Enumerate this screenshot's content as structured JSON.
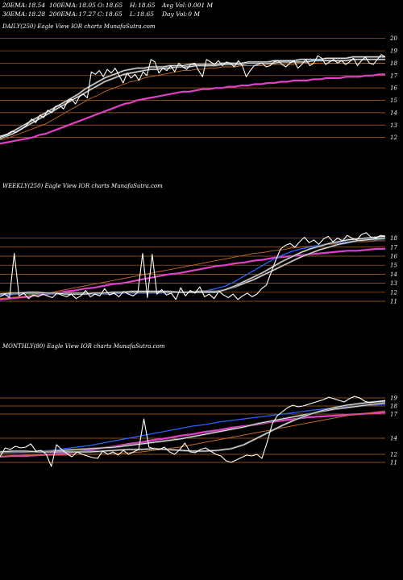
{
  "header": {
    "row1": [
      {
        "label": "20EMA:",
        "value": "18.54"
      },
      {
        "label": "100EMA:",
        "value": "18.05"
      },
      {
        "label": "O:",
        "value": "18.65"
      },
      {
        "label": "H:",
        "value": "18.65"
      },
      {
        "label": "Avg Vol:",
        "value": "0.001 M"
      }
    ],
    "row2": [
      {
        "label": "30EMA:",
        "value": "18.28"
      },
      {
        "label": "200EMA:",
        "value": "17.27"
      },
      {
        "label": "C:",
        "value": "18.65"
      },
      {
        "label": "L:",
        "value": "18.65"
      },
      {
        "label": "Day Vol:",
        "value": "0  M"
      }
    ]
  },
  "colors": {
    "background": "#000000",
    "price": "#ffffff",
    "grid": "#b5651d",
    "ema_fast": "#ffffff",
    "ema_mid": "#2962ff",
    "ema_slow": "#c46a24",
    "ema_long": "#e040c8"
  },
  "chart_data": [
    {
      "type": "line",
      "title": "DAILY(250) Eagle  View  IOR charts MunafaSutra.com",
      "ylim": [
        11,
        20.5
      ],
      "yticks": [
        12,
        13,
        14,
        15,
        16,
        17,
        18,
        19,
        20
      ],
      "series": [
        {
          "role": "price",
          "y": [
            12.1,
            12.2,
            12.3,
            12.5,
            12.4,
            12.6,
            12.8,
            13.1,
            13.5,
            13.2,
            13.8,
            13.6,
            14.2,
            14.0,
            14.5,
            14.6,
            14.3,
            14.9,
            15.1,
            14.7,
            15.3,
            15.5,
            15.2,
            17.3,
            17.1,
            17.4,
            16.9,
            17.5,
            17.2,
            17.6,
            17.0,
            16.4,
            17.2,
            16.8,
            17.1,
            16.6,
            17.3,
            17.0,
            18.3,
            18.1,
            17.2,
            17.6,
            17.4,
            17.8,
            17.3,
            18.0,
            17.7,
            17.5,
            17.9,
            18.0,
            17.4,
            16.9,
            18.3,
            18.1,
            17.9,
            18.2,
            17.8,
            18.1,
            18.0,
            17.7,
            18.2,
            17.8,
            16.9,
            17.4,
            17.8,
            17.9,
            18.0,
            17.7,
            17.8,
            18.1,
            18.2,
            17.9,
            17.7,
            18.0,
            18.2,
            17.6,
            17.9,
            18.3,
            17.8,
            18.0,
            18.6,
            18.4,
            17.9,
            18.1,
            18.3,
            18.0,
            18.2,
            17.9,
            18.1,
            18.4,
            17.8,
            18.2,
            18.5,
            18.0,
            17.9,
            18.3,
            18.7,
            18.5
          ]
        },
        {
          "role": "ema-20",
          "y": [
            12.0,
            12.2,
            12.5,
            12.8,
            13.1,
            13.4,
            13.7,
            14.0,
            14.3,
            14.6,
            14.9,
            15.2,
            15.5,
            15.9,
            16.2,
            16.5,
            16.8,
            17.0,
            17.2,
            17.4,
            17.5,
            17.6,
            17.6,
            17.7,
            17.7,
            17.7,
            17.8,
            17.8,
            17.8,
            17.9,
            17.9,
            17.9,
            17.9,
            17.9,
            18.0,
            18.0,
            18.0,
            18.0,
            18.1,
            18.1,
            18.1,
            18.1,
            18.2,
            18.2,
            18.2,
            18.2,
            18.3,
            18.3,
            18.3,
            18.3,
            18.4,
            18.4,
            18.4,
            18.4,
            18.5,
            18.5,
            18.5,
            18.5,
            18.5,
            18.5
          ]
        },
        {
          "role": "ema-30",
          "y": [
            11.9,
            12.1,
            12.3,
            12.6,
            12.9,
            13.2,
            13.5,
            13.8,
            14.1,
            14.4,
            14.7,
            15.0,
            15.3,
            15.6,
            15.9,
            16.2,
            16.5,
            16.7,
            16.9,
            17.1,
            17.2,
            17.3,
            17.4,
            17.5,
            17.5,
            17.6,
            17.6,
            17.7,
            17.7,
            17.7,
            17.8,
            17.8,
            17.8,
            17.8,
            17.9,
            17.9,
            17.9,
            17.9,
            18.0,
            18.0,
            18.0,
            18.0,
            18.0,
            18.1,
            18.1,
            18.1,
            18.1,
            18.1,
            18.2,
            18.2,
            18.2,
            18.2,
            18.2,
            18.2,
            18.3,
            18.3,
            18.3,
            18.3,
            18.3,
            18.3
          ]
        },
        {
          "role": "ema-100",
          "y": [
            11.8,
            11.9,
            12.1,
            12.3,
            12.5,
            12.7,
            12.9,
            13.1,
            13.4,
            13.7,
            14.0,
            14.3,
            14.6,
            14.9,
            15.2,
            15.4,
            15.7,
            15.9,
            16.1,
            16.3,
            16.5,
            16.6,
            16.8,
            16.9,
            17.0,
            17.1,
            17.2,
            17.3,
            17.4,
            17.4,
            17.5,
            17.5,
            17.6,
            17.6,
            17.7,
            17.7,
            17.7,
            17.8,
            17.8,
            17.8,
            17.8,
            17.9,
            17.9,
            17.9,
            17.9,
            17.9,
            18.0,
            18.0,
            18.0,
            18.0,
            18.0,
            18.0,
            18.0,
            18.0,
            18.0,
            18.0,
            18.0,
            18.0,
            18.0,
            18.0
          ]
        },
        {
          "role": "ema-200",
          "y": [
            11.5,
            11.6,
            11.7,
            11.8,
            11.9,
            12.0,
            12.2,
            12.3,
            12.5,
            12.7,
            12.9,
            13.1,
            13.3,
            13.5,
            13.7,
            13.9,
            14.1,
            14.3,
            14.5,
            14.7,
            14.8,
            15.0,
            15.1,
            15.2,
            15.3,
            15.4,
            15.5,
            15.6,
            15.7,
            15.7,
            15.8,
            15.9,
            15.9,
            16.0,
            16.0,
            16.1,
            16.1,
            16.2,
            16.2,
            16.3,
            16.3,
            16.4,
            16.4,
            16.5,
            16.5,
            16.6,
            16.6,
            16.6,
            16.7,
            16.7,
            16.8,
            16.8,
            16.8,
            16.9,
            16.9,
            16.9,
            17.0,
            17.0,
            17.1,
            17.1
          ]
        }
      ]
    },
    {
      "type": "line",
      "title": "WEEKLY(250) Eagle  View  IOR charts MunafaSutra.com",
      "ylim": [
        10.2,
        19.3
      ],
      "yticks": [
        11,
        12,
        13,
        14,
        15,
        16,
        17,
        18
      ],
      "series": [
        {
          "role": "price",
          "y": [
            11.5,
            11.8,
            11.4,
            16.3,
            11.6,
            11.9,
            11.3,
            11.7,
            11.5,
            11.8,
            11.6,
            11.4,
            11.9,
            11.7,
            11.5,
            11.8,
            11.3,
            11.6,
            12.2,
            11.5,
            11.8,
            11.6,
            12.4,
            11.7,
            11.9,
            11.5,
            12.1,
            11.8,
            11.6,
            12.0,
            16.3,
            11.4,
            16.2,
            11.8,
            12.3,
            11.7,
            11.9,
            11.2,
            12.5,
            11.6,
            12.2,
            11.9,
            12.6,
            11.5,
            11.8,
            11.3,
            12.1,
            11.7,
            11.4,
            11.8,
            11.2,
            11.6,
            11.9,
            11.5,
            11.8,
            12.4,
            12.8,
            14.2,
            15.6,
            16.8,
            17.2,
            17.4,
            17.0,
            17.6,
            18.1,
            17.5,
            17.8,
            17.3,
            17.9,
            18.2,
            17.6,
            18.0,
            17.7,
            18.3,
            18.0,
            17.8,
            18.4,
            18.6,
            18.1,
            18.0,
            18.3,
            18.2
          ]
        },
        {
          "role": "ema-20",
          "y": [
            11.8,
            11.9,
            11.9,
            12.0,
            12.0,
            11.9,
            11.9,
            11.8,
            11.8,
            11.8,
            11.9,
            11.9,
            12.0,
            12.0,
            12.1,
            12.1,
            12.1,
            12.1,
            12.1,
            12.0,
            12.0,
            12.0,
            12.0,
            12.0,
            12.3,
            12.7,
            13.2,
            13.7,
            14.2,
            14.8,
            15.4,
            15.9,
            16.4,
            16.8,
            17.1,
            17.4,
            17.6,
            17.8,
            17.9,
            18.0,
            18.1,
            18.2
          ]
        },
        {
          "role": "ema-30",
          "y": [
            11.8,
            11.8,
            11.9,
            11.9,
            11.9,
            11.9,
            11.9,
            11.9,
            11.9,
            11.9,
            11.9,
            11.9,
            11.9,
            12.0,
            12.0,
            12.0,
            12.0,
            12.0,
            12.0,
            12.0,
            12.0,
            12.1,
            12.1,
            12.1,
            12.3,
            12.6,
            13.0,
            13.4,
            13.9,
            14.4,
            14.9,
            15.4,
            15.9,
            16.3,
            16.7,
            17.0,
            17.3,
            17.5,
            17.7,
            17.8,
            17.9,
            18.0
          ]
        },
        {
          "role": "ema-50",
          "y": [
            11.7,
            11.7,
            11.8,
            11.8,
            11.8,
            11.8,
            11.8,
            11.8,
            11.8,
            11.8,
            11.8,
            11.8,
            11.8,
            11.9,
            11.9,
            11.9,
            11.9,
            11.9,
            11.9,
            12.0,
            12.0,
            12.1,
            12.2,
            12.4,
            12.7,
            13.2,
            13.8,
            14.4,
            15.0,
            15.6,
            16.1,
            16.5,
            16.8,
            17.0,
            17.2,
            17.4,
            17.5,
            17.6,
            17.7,
            17.8,
            17.8,
            17.9
          ]
        },
        {
          "role": "ema-100",
          "y": [
            11.3,
            11.4,
            11.5,
            11.6,
            11.8,
            11.9,
            12.1,
            12.3,
            12.5,
            12.7,
            12.9,
            13.1,
            13.3,
            13.5,
            13.7,
            13.9,
            14.1,
            14.3,
            14.5,
            14.7,
            14.9,
            15.1,
            15.3,
            15.5,
            15.7,
            15.9,
            16.1,
            16.3,
            16.4,
            16.6,
            16.7,
            16.9,
            17.0,
            17.1,
            17.2,
            17.3,
            17.4,
            17.5,
            17.6,
            17.6,
            17.7,
            17.7
          ]
        },
        {
          "role": "ema-200",
          "y": [
            11.2,
            11.3,
            11.4,
            11.5,
            11.7,
            11.8,
            11.9,
            12.1,
            12.2,
            12.4,
            12.5,
            12.7,
            12.9,
            13.0,
            13.2,
            13.4,
            13.6,
            13.8,
            14.0,
            14.1,
            14.3,
            14.5,
            14.7,
            14.9,
            15.0,
            15.2,
            15.3,
            15.5,
            15.6,
            15.8,
            15.9,
            16.0,
            16.1,
            16.2,
            16.3,
            16.4,
            16.5,
            16.6,
            16.6,
            16.7,
            16.8,
            16.8
          ]
        }
      ]
    },
    {
      "type": "line",
      "title": "MONTHLY(80) Eagle  View  IOR charts MunafaSutra.com",
      "ylim": [
        10.4,
        19.6
      ],
      "yticks": [
        11,
        12,
        14,
        17,
        18,
        19
      ],
      "series": [
        {
          "role": "price",
          "y": [
            11.7,
            12.8,
            12.6,
            13.0,
            12.8,
            12.9,
            13.3,
            12.4,
            12.5,
            12.0,
            10.5,
            13.2,
            12.6,
            12.1,
            11.7,
            12.3,
            12.0,
            11.8,
            11.6,
            11.5,
            12.4,
            12.0,
            12.3,
            11.9,
            12.5,
            12.0,
            12.3,
            12.6,
            16.4,
            12.9,
            12.7,
            12.6,
            12.9,
            12.3,
            12.0,
            12.6,
            13.4,
            12.3,
            12.2,
            12.6,
            12.8,
            12.4,
            12.0,
            11.8,
            11.2,
            11.0,
            11.3,
            11.6,
            11.9,
            11.8,
            12.0,
            11.5,
            13.5,
            15.8,
            16.8,
            17.3,
            17.8,
            18.1,
            17.9,
            18.0,
            18.2,
            18.4,
            18.6,
            18.8,
            19.1,
            18.9,
            18.7,
            18.5,
            18.9,
            19.2,
            19.0,
            18.6,
            18.4,
            18.5,
            18.6,
            18.7
          ]
        },
        {
          "role": "ema-20",
          "y": [
            12.3,
            12.4,
            12.4,
            12.3,
            12.3,
            12.3,
            12.3,
            12.3,
            12.4,
            12.5,
            12.6,
            12.6,
            12.7,
            12.6,
            12.5,
            12.4,
            12.4,
            12.5,
            12.7,
            13.2,
            14.0,
            14.8,
            15.6,
            16.3,
            16.9,
            17.4,
            17.8,
            18.1,
            18.3,
            18.5,
            18.6
          ]
        },
        {
          "role": "ema-30",
          "y": [
            12.2,
            12.3,
            12.3,
            12.3,
            12.4,
            12.5,
            12.6,
            12.7,
            12.8,
            12.9,
            13.1,
            13.3,
            13.5,
            13.7,
            13.9,
            14.2,
            14.5,
            14.8,
            15.1,
            15.4,
            15.8,
            16.1,
            16.4,
            16.7,
            17.0,
            17.3,
            17.6,
            17.8,
            18.0,
            18.2,
            18.4
          ]
        },
        {
          "role": "ema-50",
          "y": [
            12.2,
            12.2,
            12.3,
            12.4,
            12.5,
            12.7,
            12.9,
            13.1,
            13.4,
            13.7,
            14.0,
            14.3,
            14.6,
            14.9,
            15.2,
            15.5,
            15.7,
            16.0,
            16.2,
            16.4,
            16.6,
            16.8,
            17.0,
            17.2,
            17.4,
            17.6,
            17.8,
            17.9,
            18.0,
            18.1,
            18.2
          ]
        },
        {
          "role": "ema-100",
          "y": [
            11.8,
            11.8,
            11.9,
            11.9,
            11.9,
            11.9,
            12.0,
            12.0,
            12.0,
            12.1,
            12.2,
            12.3,
            12.5,
            12.7,
            12.9,
            13.2,
            13.5,
            13.8,
            14.1,
            14.4,
            14.7,
            15.0,
            15.3,
            15.6,
            15.9,
            16.2,
            16.5,
            16.8,
            17.0,
            17.2,
            17.4
          ]
        },
        {
          "role": "ema-200",
          "y": [
            11.7,
            11.8,
            11.8,
            11.9,
            12.0,
            12.1,
            12.3,
            12.5,
            12.8,
            13.0,
            13.3,
            13.5,
            13.8,
            14.0,
            14.3,
            14.5,
            14.8,
            15.0,
            15.3,
            15.5,
            15.7,
            16.0,
            16.2,
            16.4,
            16.6,
            16.7,
            16.8,
            16.9,
            17.0,
            17.1,
            17.2
          ]
        }
      ]
    }
  ]
}
